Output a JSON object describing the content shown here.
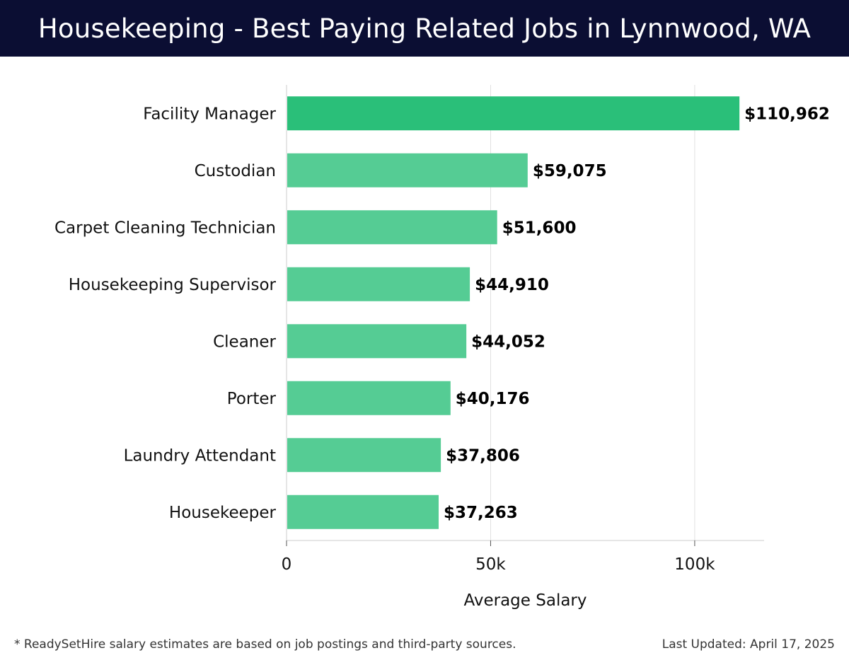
{
  "header": {
    "title": "Housekeeping - Best Paying Related Jobs in Lynnwood, WA"
  },
  "chart_data": {
    "type": "bar",
    "orientation": "horizontal",
    "title": "Housekeeping - Best Paying Related Jobs in Lynnwood, WA",
    "xlabel": "Average Salary",
    "ylabel": "",
    "xlim": [
      0,
      117000
    ],
    "x_ticks": [
      0,
      50000,
      100000
    ],
    "x_tick_labels": [
      "0",
      "50k",
      "100k"
    ],
    "grid": true,
    "categories": [
      "Facility Manager",
      "Custodian",
      "Carpet Cleaning Technician",
      "Housekeeping Supervisor",
      "Cleaner",
      "Porter",
      "Laundry Attendant",
      "Housekeeper"
    ],
    "values": [
      110962,
      59075,
      51600,
      44910,
      44052,
      40176,
      37806,
      37263
    ],
    "value_labels": [
      "$110,962",
      "$59,075",
      "$51,600",
      "$44,910",
      "$44,052",
      "$40,176",
      "$37,806",
      "$37,263"
    ],
    "colors": {
      "highlight": "#2abf79",
      "bar": "#55cc94",
      "grid": "#e0e0e0",
      "axis": "#cccccc"
    }
  },
  "footer": {
    "note": "* ReadySetHire salary estimates are based on job postings and third-party sources.",
    "updated": "Last Updated: April 17, 2025"
  }
}
